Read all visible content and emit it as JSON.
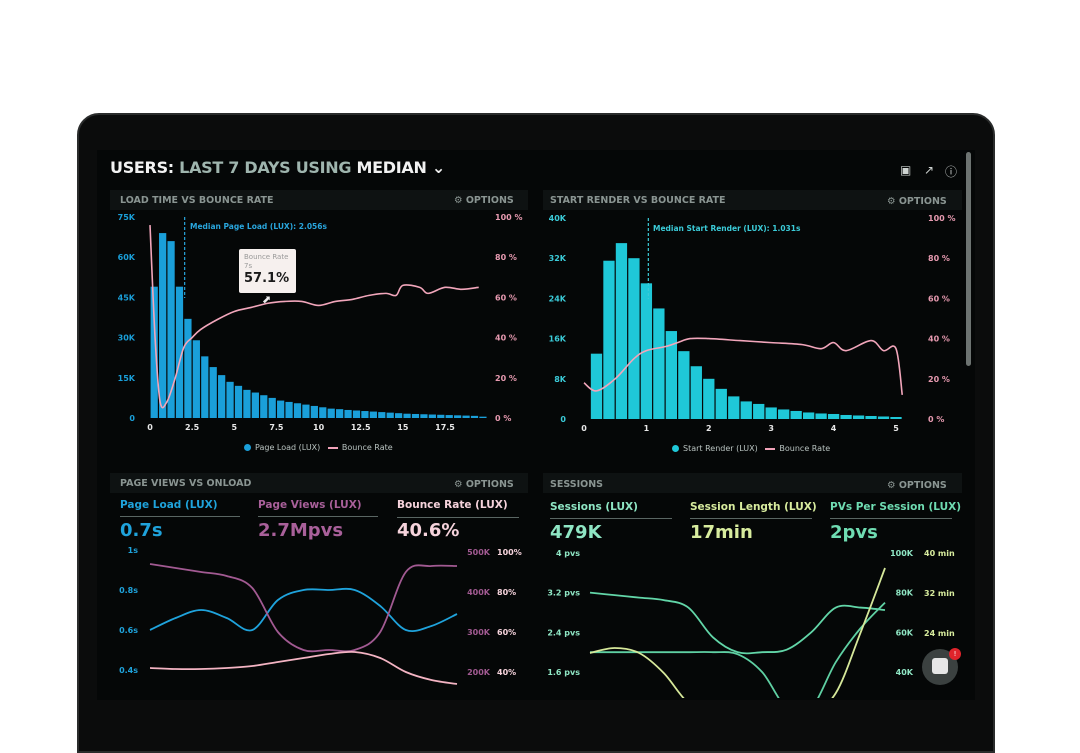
{
  "header": {
    "title_prefix": "USERS:",
    "title_period": "LAST 7 DAYS",
    "title_using": "USING",
    "title_metric": "MEDIAN",
    "icons": [
      "monitor-icon",
      "share-icon",
      "help-icon"
    ]
  },
  "panels": {
    "load_time": {
      "title": "LOAD TIME VS BOUNCE RATE",
      "options": "OPTIONS",
      "median_label": "Median Page Load (LUX): 2.056s",
      "tooltip": {
        "label": "Bounce Rate",
        "x": "7s",
        "value": "57.1%"
      }
    },
    "start_render": {
      "title": "START RENDER VS BOUNCE RATE",
      "options": "OPTIONS",
      "median_label": "Median Start Render (LUX): 1.031s"
    },
    "page_views": {
      "title": "PAGE VIEWS VS ONLOAD",
      "options": "OPTIONS",
      "stats": [
        {
          "label": "Page Load (LUX)",
          "value": "0.7s",
          "color": "#1fa3dc"
        },
        {
          "label": "Page Views (LUX)",
          "value": "2.7Mpvs",
          "color": "#a9609a"
        },
        {
          "label": "Bounce Rate (LUX)",
          "value": "40.6%",
          "color": "#f6d3dc"
        }
      ]
    },
    "sessions": {
      "title": "SESSIONS",
      "options": "OPTIONS",
      "stats": [
        {
          "label": "Sessions (LUX)",
          "value": "479K",
          "color": "#8fe6c4"
        },
        {
          "label": "Session Length (LUX)",
          "value": "17min",
          "color": "#d8ec9e"
        },
        {
          "label": "PVs Per Session (LUX)",
          "value": "2pvs",
          "color": "#6fdcb2"
        }
      ]
    }
  },
  "chat": {
    "badge": "!"
  },
  "chart_data": [
    {
      "type": "bar",
      "title": "LOAD TIME VS BOUNCE RATE",
      "x_ticks": [
        "0",
        "2.5",
        "5",
        "7.5",
        "10",
        "12.5",
        "15",
        "17.5"
      ],
      "x_tick_values": [
        0,
        2.5,
        5,
        7.5,
        10,
        12.5,
        15,
        17.5
      ],
      "y_left_ticks": [
        "0",
        "15K",
        "30K",
        "45K",
        "60K",
        "75K"
      ],
      "y_left_lim": [
        0,
        75000
      ],
      "y_right_ticks": [
        "0 %",
        "20 %",
        "40 %",
        "60 %",
        "80 %",
        "100 %"
      ],
      "y_right_lim": [
        0,
        100
      ],
      "median_x": 2.056,
      "legend": [
        "Page Load (LUX)",
        "Bounce Rate"
      ],
      "bars": {
        "name": "Page Load (LUX)",
        "x_start": 0,
        "bin_width": 0.5,
        "color": "#1a9fd9",
        "values": [
          49000,
          69000,
          66000,
          49000,
          37000,
          29000,
          23000,
          19000,
          16000,
          13500,
          12000,
          10500,
          9500,
          8500,
          7500,
          6500,
          6000,
          5500,
          5000,
          4500,
          4000,
          3500,
          3300,
          3000,
          2800,
          2600,
          2400,
          2200,
          2000,
          1800,
          1600,
          1500,
          1400,
          1300,
          1200,
          1100,
          1000,
          900,
          800,
          500
        ]
      },
      "line": {
        "name": "Bounce Rate",
        "color": "#f2a6bb",
        "x": [
          0,
          0.3,
          0.6,
          1,
          1.5,
          2,
          2.5,
          3,
          4,
          5,
          6,
          7,
          8,
          9,
          10,
          11,
          12,
          13,
          14,
          14.6,
          15,
          16,
          16.5,
          17.5,
          18.5,
          19.5
        ],
        "y": [
          96,
          40,
          8,
          8,
          20,
          35,
          40,
          44,
          49,
          53,
          55,
          57.1,
          58,
          58,
          56,
          58,
          59,
          61,
          62,
          61,
          66,
          65,
          62,
          65,
          64,
          65
        ]
      }
    },
    {
      "type": "bar",
      "title": "START RENDER VS BOUNCE RATE",
      "x_ticks": [
        "0",
        "1",
        "2",
        "3",
        "4",
        "5"
      ],
      "x_tick_values": [
        0,
        1,
        2,
        3,
        4,
        5
      ],
      "y_left_ticks": [
        "0",
        "8K",
        "16K",
        "24K",
        "32K",
        "40K"
      ],
      "y_left_lim": [
        0,
        40000
      ],
      "y_right_ticks": [
        "0 %",
        "20 %",
        "40 %",
        "60 %",
        "80 %",
        "100 %"
      ],
      "y_right_lim": [
        0,
        100
      ],
      "median_x": 1.031,
      "legend": [
        "Start Render (LUX)",
        "Bounce Rate"
      ],
      "bars": {
        "name": "Start Render (LUX)",
        "x_start": 0.1,
        "bin_width": 0.2,
        "color": "#1fc8d8",
        "values": [
          13000,
          31500,
          35000,
          32000,
          27000,
          22000,
          17500,
          13500,
          10500,
          8000,
          6000,
          4500,
          3500,
          3000,
          2300,
          1900,
          1600,
          1300,
          1100,
          1000,
          800,
          700,
          600,
          500,
          400
        ]
      },
      "line": {
        "name": "Bounce Rate",
        "color": "#f2a6bb",
        "x": [
          0,
          0.2,
          0.5,
          0.8,
          1,
          1.3,
          1.5,
          1.7,
          2,
          2.5,
          3,
          3.5,
          3.8,
          4,
          4.2,
          4.6,
          4.8,
          5,
          5.1
        ],
        "y": [
          18,
          14,
          20,
          30,
          34,
          36,
          38,
          40,
          40,
          39,
          38,
          37,
          35,
          38,
          34,
          39,
          34,
          35,
          12
        ]
      }
    },
    {
      "type": "line",
      "title": "PAGE VIEWS VS ONLOAD",
      "y_left_ticks": [
        "0.4s",
        "0.6s",
        "0.8s",
        "1s"
      ],
      "y_left_lim": [
        0.4,
        1.0
      ],
      "y_right_ticks_1": [
        "200K",
        "300K",
        "400K",
        "500K"
      ],
      "y_right_ticks_2": [
        "40%",
        "60%",
        "80%",
        "100%"
      ],
      "series": [
        {
          "name": "Page Load (LUX)",
          "axis": "left",
          "unit": "s",
          "color": "#1fa3dc",
          "y": [
            0.6,
            0.66,
            0.7,
            0.66,
            0.6,
            0.75,
            0.8,
            0.8,
            0.8,
            0.72,
            0.6,
            0.62,
            0.68
          ]
        },
        {
          "name": "Page Views (LUX)",
          "axis": "right1",
          "unit": "K",
          "color": "#a25a92",
          "y": [
            470,
            460,
            450,
            440,
            410,
            300,
            255,
            255,
            255,
            300,
            450,
            465,
            465
          ]
        },
        {
          "name": "Bounce Rate (LUX)",
          "axis": "right2",
          "unit": "%",
          "color": "#f4b4c3",
          "y": [
            42,
            41.5,
            41.5,
            42,
            43,
            45,
            47,
            49,
            50,
            47,
            40,
            36,
            34
          ]
        }
      ],
      "x_count": 13
    },
    {
      "type": "line",
      "title": "SESSIONS",
      "y_left_ticks": [
        "1.6 pvs",
        "2.4 pvs",
        "3.2 pvs",
        "4 pvs"
      ],
      "y_left_lim": [
        1.6,
        4.0
      ],
      "y_right_ticks_1": [
        "40K",
        "60K",
        "80K",
        "100K"
      ],
      "y_right_ticks_2": [
        "24 min",
        "32 min",
        "40 min"
      ],
      "series": [
        {
          "name": "PVs Per Session (LUX)",
          "axis": "left",
          "unit": "pvs",
          "color": "#62d6a8",
          "y": [
            3.2,
            3.15,
            3.1,
            3.05,
            2.9,
            2.3,
            2.0,
            2.0,
            2.05,
            2.4,
            2.9,
            2.9,
            2.85
          ]
        },
        {
          "name": "Sessions (LUX)",
          "axis": "right1",
          "unit": "K",
          "color": "#5fd0a3",
          "y": [
            50,
            50,
            50,
            50,
            50,
            50,
            49,
            40,
            22,
            22,
            45,
            62,
            75
          ]
        },
        {
          "name": "Session Length (LUX)",
          "axis": "right2",
          "unit": "min",
          "color": "#d6e89a",
          "y": [
            20,
            21,
            20,
            16,
            10,
            8,
            8,
            8,
            8,
            8,
            12,
            24,
            37
          ]
        }
      ],
      "x_count": 13
    }
  ]
}
